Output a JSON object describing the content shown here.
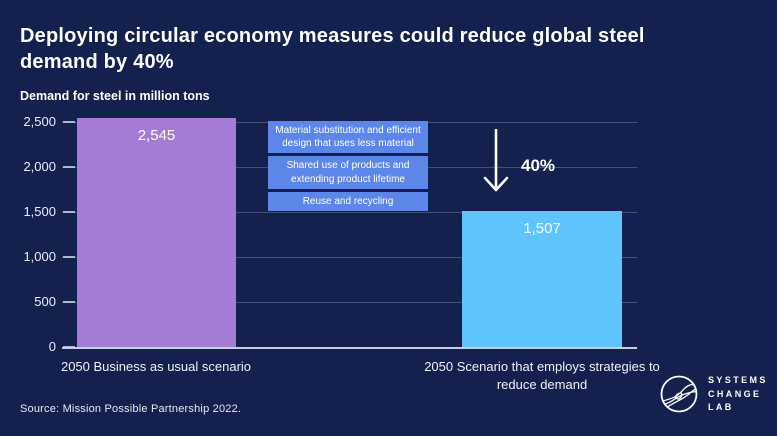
{
  "header": {
    "title": "Deploying circular economy measures could reduce global steel demand by 40%",
    "subtitle": "Demand for steel in million tons"
  },
  "chart_data": {
    "type": "bar",
    "categories": [
      "2050 Business as usual scenario",
      "2050 Scenario that employs strategies to reduce demand"
    ],
    "values": [
      2545,
      1507
    ],
    "bar_labels": [
      "2,545",
      "1,507"
    ],
    "bar_colors": [
      "#A57CD5",
      "#5FC4FB"
    ],
    "ylim": [
      0,
      2500
    ],
    "yticks": [
      "0",
      "500",
      "1,000",
      "1,500",
      "2,000",
      "2,500"
    ],
    "grid": "horizontal",
    "reduction_label": "40%",
    "measures": [
      "Material substitution and efficient design that uses less material",
      "Shared use of products and extending product lifetime",
      "Reuse and recycling"
    ],
    "measure_box_color": "#5C86E8",
    "background_color": "#14204E"
  },
  "footer": {
    "source": "Source: Mission Possible Partnership 2022.",
    "logo_lines": [
      "SYSTEMS",
      "CHANGE",
      "LAB"
    ]
  }
}
